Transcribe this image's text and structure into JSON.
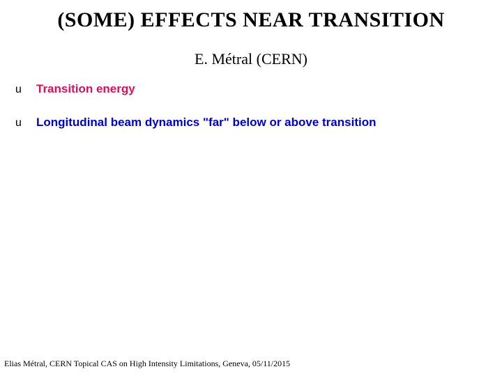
{
  "title": {
    "text": "(SOME) EFFECTS NEAR TRANSITION",
    "color": "#000000",
    "fontsize": 30
  },
  "author": {
    "text": "E. Métral (CERN)",
    "color": "#000000",
    "fontsize": 22
  },
  "bullets": {
    "marker": "u",
    "items": [
      {
        "text": "Transition energy",
        "color": "#d4145a"
      },
      {
        "text": "Longitudinal beam dynamics \"far\" below or above transition",
        "color": "#0000cc"
      }
    ],
    "fontsize": 17,
    "row_gap": 28
  },
  "footer": {
    "text": "Elias Métral, CERN Topical CAS on High Intensity Limitations, Geneva, 05/11/2015",
    "color": "#000000",
    "fontsize": 12
  }
}
